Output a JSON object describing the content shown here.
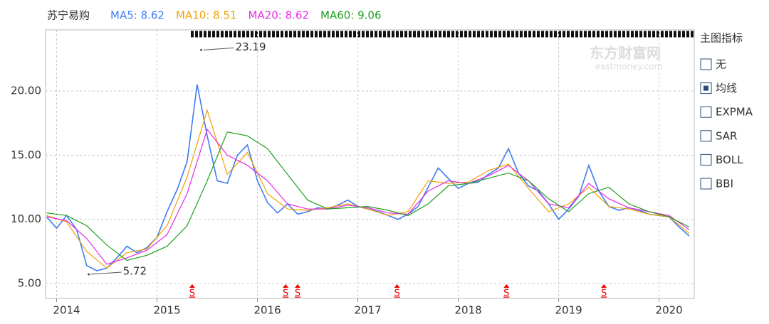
{
  "chart_data": {
    "type": "line",
    "title": "苏宁易购",
    "series": [
      {
        "name": "MA5: 8.62",
        "color": "#3d7cf5",
        "x": [
          2013.9,
          2014.0,
          2014.1,
          2014.2,
          2014.3,
          2014.4,
          2014.5,
          2014.6,
          2014.7,
          2014.8,
          2014.9,
          2015.0,
          2015.1,
          2015.2,
          2015.3,
          2015.4,
          2015.5,
          2015.6,
          2015.7,
          2015.8,
          2015.9,
          2016.0,
          2016.1,
          2016.2,
          2016.3,
          2016.4,
          2016.5,
          2016.6,
          2016.7,
          2016.8,
          2016.9,
          2017.0,
          2017.1,
          2017.2,
          2017.3,
          2017.4,
          2017.5,
          2017.6,
          2017.7,
          2017.8,
          2017.9,
          2018.0,
          2018.1,
          2018.2,
          2018.3,
          2018.4,
          2018.5,
          2018.6,
          2018.7,
          2018.8,
          2018.9,
          2019.0,
          2019.1,
          2019.2,
          2019.3,
          2019.4,
          2019.5,
          2019.6,
          2019.7,
          2019.8,
          2019.9,
          2020.0,
          2020.1,
          2020.2,
          2020.3
        ],
        "values": [
          10.2,
          9.3,
          10.3,
          9.2,
          6.4,
          6.0,
          6.2,
          7.0,
          7.9,
          7.4,
          7.8,
          8.6,
          10.6,
          12.3,
          14.5,
          20.5,
          16.5,
          13.0,
          12.8,
          15.0,
          15.8,
          13.0,
          11.3,
          10.5,
          11.2,
          10.4,
          10.6,
          10.9,
          10.8,
          11.1,
          11.5,
          11.0,
          10.8,
          10.6,
          10.3,
          10.0,
          10.4,
          11.0,
          12.5,
          14.0,
          13.2,
          12.4,
          12.8,
          12.9,
          13.5,
          14.0,
          15.5,
          13.6,
          12.6,
          12.2,
          11.2,
          10.0,
          10.8,
          11.8,
          14.2,
          12.2,
          11.0,
          10.7,
          10.9,
          10.7,
          10.4,
          10.3,
          10.2,
          9.4,
          8.7
        ]
      },
      {
        "name": "MA10: 8.51",
        "color": "#f0a000",
        "x": [
          2013.9,
          2014.1,
          2014.3,
          2014.5,
          2014.7,
          2014.9,
          2015.1,
          2015.3,
          2015.5,
          2015.7,
          2015.9,
          2016.1,
          2016.3,
          2016.5,
          2016.7,
          2016.9,
          2017.1,
          2017.3,
          2017.5,
          2017.7,
          2017.9,
          2018.1,
          2018.3,
          2018.5,
          2018.7,
          2018.9,
          2019.1,
          2019.3,
          2019.5,
          2019.7,
          2019.9,
          2020.1,
          2020.3
        ],
        "values": [
          10.3,
          9.8,
          7.5,
          6.2,
          7.4,
          7.7,
          9.5,
          13.3,
          18.5,
          13.5,
          15.2,
          12.0,
          10.8,
          10.7,
          10.9,
          11.2,
          10.8,
          10.3,
          10.6,
          13.0,
          12.8,
          12.9,
          13.8,
          14.3,
          12.4,
          10.6,
          11.2,
          12.5,
          11.0,
          10.8,
          10.4,
          10.2,
          8.9
        ]
      },
      {
        "name": "MA20: 8.62",
        "color": "#e829e8",
        "x": [
          2013.9,
          2014.1,
          2014.3,
          2014.5,
          2014.7,
          2014.9,
          2015.1,
          2015.3,
          2015.5,
          2015.7,
          2015.9,
          2016.1,
          2016.3,
          2016.5,
          2016.7,
          2016.9,
          2017.1,
          2017.3,
          2017.5,
          2017.7,
          2017.9,
          2018.1,
          2018.3,
          2018.5,
          2018.7,
          2018.9,
          2019.1,
          2019.3,
          2019.5,
          2019.7,
          2019.9,
          2020.1,
          2020.3
        ],
        "values": [
          10.2,
          9.9,
          8.5,
          6.5,
          7.0,
          7.6,
          8.8,
          12.0,
          17.0,
          15.0,
          14.2,
          13.0,
          11.2,
          10.8,
          10.8,
          11.1,
          10.9,
          10.5,
          10.4,
          12.2,
          13.0,
          12.8,
          13.4,
          14.2,
          13.0,
          11.2,
          10.9,
          12.8,
          11.6,
          10.9,
          10.6,
          10.3,
          9.2
        ]
      },
      {
        "name": "MA60: 9.06",
        "color": "#1e9e1e",
        "x": [
          2013.9,
          2014.1,
          2014.3,
          2014.5,
          2014.7,
          2014.9,
          2015.1,
          2015.3,
          2015.5,
          2015.7,
          2015.9,
          2016.1,
          2016.3,
          2016.5,
          2016.7,
          2016.9,
          2017.1,
          2017.3,
          2017.5,
          2017.7,
          2017.9,
          2018.1,
          2018.3,
          2018.5,
          2018.7,
          2018.9,
          2019.1,
          2019.3,
          2019.5,
          2019.7,
          2019.9,
          2020.1,
          2020.3
        ],
        "values": [
          10.5,
          10.3,
          9.5,
          8.0,
          6.8,
          7.2,
          7.9,
          9.5,
          13.0,
          16.8,
          16.5,
          15.5,
          13.5,
          11.5,
          10.8,
          10.9,
          11.0,
          10.7,
          10.3,
          11.2,
          12.6,
          12.8,
          13.2,
          13.6,
          13.0,
          11.6,
          10.6,
          12.0,
          12.5,
          11.2,
          10.6,
          10.2,
          9.4
        ]
      }
    ],
    "xlim": [
      2013.89,
      2020.35
    ],
    "xticks": [
      2014,
      2015,
      2016,
      2017,
      2018,
      2019,
      2020
    ],
    "ylim": [
      3.84,
      24.76
    ],
    "yticks": [
      {
        "value": 5,
        "label": "5.00"
      },
      {
        "value": 10,
        "label": "10.00"
      },
      {
        "value": 15,
        "label": "15.00"
      },
      {
        "value": 20,
        "label": "20.00"
      }
    ],
    "grid": true,
    "annotations": [
      {
        "x": 2015.44,
        "value": 23.19
      },
      {
        "x": 2014.32,
        "value": 5.72
      }
    ],
    "signals": [
      {
        "x": 2015.35,
        "label": "S"
      },
      {
        "x": 2016.28,
        "label": "S"
      },
      {
        "x": 2016.4,
        "label": "S"
      },
      {
        "x": 2017.39,
        "label": "S"
      },
      {
        "x": 2018.48,
        "label": "S"
      },
      {
        "x": 2019.45,
        "label": "S"
      }
    ]
  },
  "side_panel": {
    "title": "主图指标",
    "options": [
      {
        "label": "无",
        "checked": false
      },
      {
        "label": "均线",
        "checked": true
      },
      {
        "label": "EXPMA",
        "checked": false
      },
      {
        "label": "SAR",
        "checked": false
      },
      {
        "label": "BOLL",
        "checked": false
      },
      {
        "label": "BBI",
        "checked": false
      }
    ]
  },
  "watermark": {
    "brand": "东方财富网",
    "url": "eastmoney.com"
  }
}
